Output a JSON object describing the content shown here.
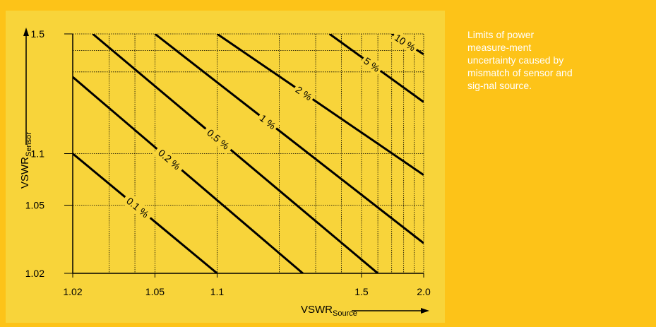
{
  "caption": "Limits of power measure-ment uncertainty caused by mismatch of sensor and sig-nal source.",
  "chart_data": {
    "type": "line",
    "title": "",
    "x_scale": "log(VSWR-1)",
    "y_scale": "log(VSWR-1)",
    "xlabel": {
      "main": "VSWR",
      "sub": "Source"
    },
    "ylabel": {
      "main": "VSWR",
      "sub": "Sensor"
    },
    "xlim": [
      1.02,
      2.0
    ],
    "ylim": [
      1.02,
      1.5
    ],
    "x_ticks": [
      {
        "value": 1.02,
        "label": "1.02"
      },
      {
        "value": 1.05,
        "label": "1.05"
      },
      {
        "value": 1.1,
        "label": "1.1"
      },
      {
        "value": 1.5,
        "label": "1.5"
      },
      {
        "value": 2.0,
        "label": "2.0"
      }
    ],
    "y_ticks": [
      {
        "value": 1.02,
        "label": "1.02"
      },
      {
        "value": 1.05,
        "label": "1.05"
      },
      {
        "value": 1.1,
        "label": "1.1"
      },
      {
        "value": 1.5,
        "label": "1.5"
      }
    ],
    "x_grid": [
      1.02,
      1.03,
      1.04,
      1.05,
      1.1,
      1.2,
      1.3,
      1.4,
      1.5,
      1.6,
      1.7,
      1.8,
      1.9,
      2.0
    ],
    "y_grid": [
      1.02,
      1.05,
      1.1,
      1.3,
      1.4,
      1.5
    ],
    "grid": true,
    "series": [
      {
        "label": "0.1 %",
        "points": [
          {
            "x": 1.02,
            "y": 1.1
          },
          {
            "x": 1.1,
            "y": 1.02
          }
        ]
      },
      {
        "label": "0.2 %",
        "points": [
          {
            "x": 1.02,
            "y": 1.28
          },
          {
            "x": 1.26,
            "y": 1.02
          }
        ]
      },
      {
        "label": "0.5 %",
        "points": [
          {
            "x": 1.025,
            "y": 1.5
          },
          {
            "x": 1.6,
            "y": 1.02
          }
        ]
      },
      {
        "label": "1 %",
        "points": [
          {
            "x": 1.05,
            "y": 1.5
          },
          {
            "x": 2.0,
            "y": 1.03
          }
        ]
      },
      {
        "label": "2 %",
        "points": [
          {
            "x": 1.1,
            "y": 1.5
          },
          {
            "x": 2.0,
            "y": 1.075
          }
        ]
      },
      {
        "label": "5 %",
        "points": [
          {
            "x": 1.35,
            "y": 1.5
          },
          {
            "x": 2.0,
            "y": 1.2
          }
        ]
      },
      {
        "label": "10 %",
        "points": [
          {
            "x": 1.7,
            "y": 1.5
          },
          {
            "x": 2.0,
            "y": 1.38
          }
        ]
      }
    ]
  }
}
